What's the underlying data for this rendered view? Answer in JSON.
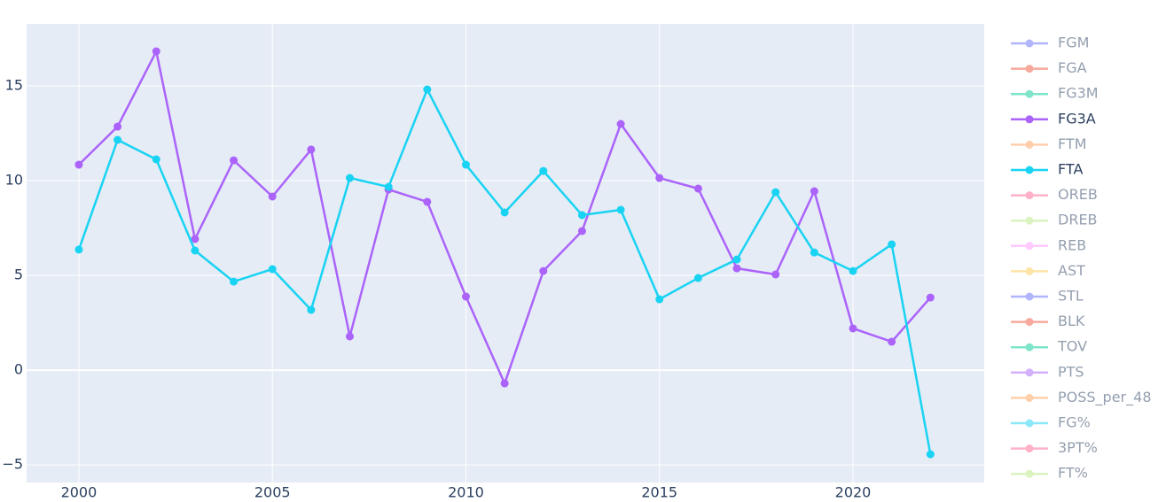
{
  "chart_data": {
    "type": "line",
    "x": [
      2000,
      2001,
      2002,
      2003,
      2004,
      2005,
      2006,
      2007,
      2008,
      2009,
      2010,
      2011,
      2012,
      2013,
      2014,
      2015,
      2016,
      2017,
      2018,
      2019,
      2020,
      2021,
      2022
    ],
    "series": [
      {
        "name": "FGM",
        "color": "#636efa",
        "visible": false
      },
      {
        "name": "FGA",
        "color": "#EF553B",
        "visible": false
      },
      {
        "name": "FG3M",
        "color": "#00cc96",
        "visible": false
      },
      {
        "name": "FG3A",
        "color": "#ab63fa",
        "visible": true,
        "values": [
          10.84,
          12.85,
          16.82,
          6.92,
          11.07,
          9.16,
          11.64,
          1.78,
          9.53,
          8.88,
          3.88,
          -0.7,
          5.23,
          7.34,
          12.99,
          10.14,
          9.58,
          5.37,
          5.05,
          9.44,
          2.2,
          1.5,
          3.83
        ]
      },
      {
        "name": "FTM",
        "color": "#FFA15A",
        "visible": false
      },
      {
        "name": "FTA",
        "color": "#19d3f3",
        "visible": true,
        "values": [
          6.36,
          12.15,
          11.12,
          6.31,
          4.67,
          5.33,
          3.18,
          10.14,
          9.67,
          14.81,
          10.84,
          8.32,
          10.51,
          8.18,
          8.46,
          3.74,
          4.86,
          5.84,
          9.39,
          6.21,
          5.23,
          6.64,
          -4.44
        ]
      },
      {
        "name": "OREB",
        "color": "#FF6692",
        "visible": false
      },
      {
        "name": "DREB",
        "color": "#B6E880",
        "visible": false
      },
      {
        "name": "REB",
        "color": "#FF97FF",
        "visible": false
      },
      {
        "name": "AST",
        "color": "#FECB52",
        "visible": false
      },
      {
        "name": "STL",
        "color": "#636efa",
        "visible": false
      },
      {
        "name": "BLK",
        "color": "#EF553B",
        "visible": false
      },
      {
        "name": "TOV",
        "color": "#00cc96",
        "visible": false
      },
      {
        "name": "PTS",
        "color": "#ab63fa",
        "visible": false
      },
      {
        "name": "POSS_per_48",
        "color": "#FFA15A",
        "visible": false
      },
      {
        "name": "FG%",
        "color": "#19d3f3",
        "visible": false
      },
      {
        "name": "3PT%",
        "color": "#FF6692",
        "visible": false
      },
      {
        "name": "FT%",
        "color": "#B6E880",
        "visible": false
      }
    ],
    "xlim": [
      1998.65,
      2023.39
    ],
    "xticks": [
      2000,
      2005,
      2010,
      2015,
      2020
    ],
    "ylim": [
      -5.93,
      18.27
    ],
    "yticks": [
      {
        "value": -5,
        "label": "−5"
      },
      0,
      5,
      10,
      15
    ],
    "grid": true
  }
}
